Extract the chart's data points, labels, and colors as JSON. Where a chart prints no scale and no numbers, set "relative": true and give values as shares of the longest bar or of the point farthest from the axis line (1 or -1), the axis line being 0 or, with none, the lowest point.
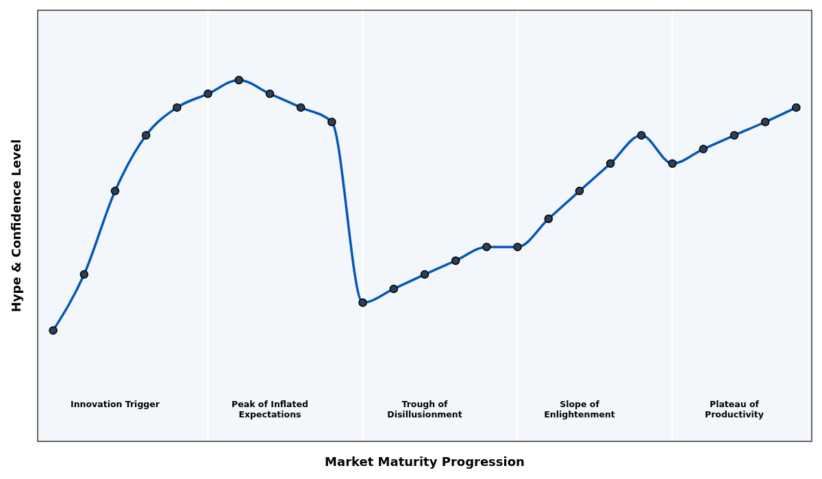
{
  "chart_data": {
    "type": "line",
    "relative": true,
    "xlabel": "Market Maturity Progression",
    "ylabel": "Hype & Confidence Level",
    "categories": [
      null,
      null,
      null,
      null,
      null,
      null,
      null,
      null,
      null,
      null,
      null,
      null,
      null,
      null,
      null,
      null,
      null,
      null,
      null,
      null,
      null,
      null,
      null,
      null,
      null
    ],
    "series": [
      {
        "color": "#0057b8",
        "values": [
          0.307,
          0.462,
          0.693,
          0.847,
          0.924,
          0.962,
          1,
          0.962,
          0.924,
          0.884,
          0.384,
          0.422,
          0.462,
          0.5,
          0.538,
          0.538,
          0.616,
          0.693,
          0.769,
          0.847,
          0.769,
          0.809,
          0.847,
          0.884,
          0.924
        ]
      }
    ],
    "marker": "circle",
    "line_style": "solid",
    "grid": "x",
    "annotations": [
      "Innovation Trigger",
      "Peak of Inflated\nExpectations",
      "Trough of\nDisillusionment",
      "Slope of\nEnlightenment",
      "Plateau of\nProductivity"
    ]
  }
}
